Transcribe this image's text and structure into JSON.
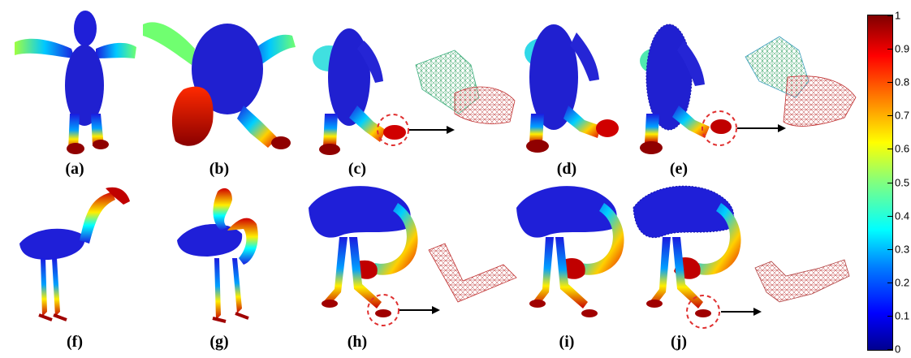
{
  "captions": [
    "(a)",
    "(b)",
    "(c)",
    "(d)",
    "(e)",
    "(f)",
    "(g)",
    "(h)",
    "(i)",
    "(j)"
  ],
  "colorbar": {
    "ticks": [
      "1",
      "0.9",
      "0.8",
      "0.7",
      "0.6",
      "0.5",
      "0.4",
      "0.3",
      "0.2",
      "0.1",
      "0"
    ],
    "colormap": [
      "#00008f",
      "#0000ff",
      "#0080ff",
      "#00ffff",
      "#80ff80",
      "#ffff00",
      "#ff8000",
      "#ff0000",
      "#800000"
    ]
  }
}
